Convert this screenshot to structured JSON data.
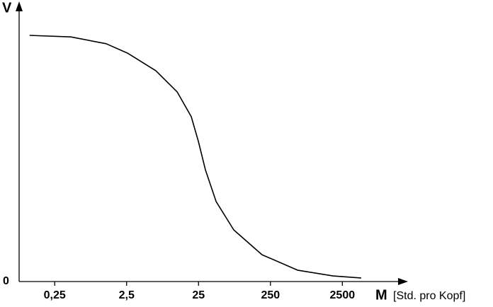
{
  "chart_data": {
    "type": "line",
    "y_label": "V",
    "x_label": "M",
    "x_unit": "[Std. pro Kopf]",
    "x": [
      0.112,
      0.42,
      1.3,
      2.57,
      6.38,
      12.6,
      19.8,
      24.9,
      31.2,
      43.9,
      77.3,
      191,
      595,
      1850,
      4580
    ],
    "values": [
      0.972,
      0.966,
      0.939,
      0.902,
      0.832,
      0.749,
      0.651,
      0.553,
      0.441,
      0.316,
      0.204,
      0.106,
      0.045,
      0.022,
      0.014
    ],
    "color": "#000000",
    "xscale": "log",
    "xlim": [
      0.08,
      20000
    ],
    "xticks": [
      {
        "value": 0.25,
        "label": "0,25"
      },
      {
        "value": 2.5,
        "label": "2,5"
      },
      25,
      250,
      2500
    ],
    "ylim": [
      0,
      1
    ],
    "yticks": [
      0
    ]
  }
}
